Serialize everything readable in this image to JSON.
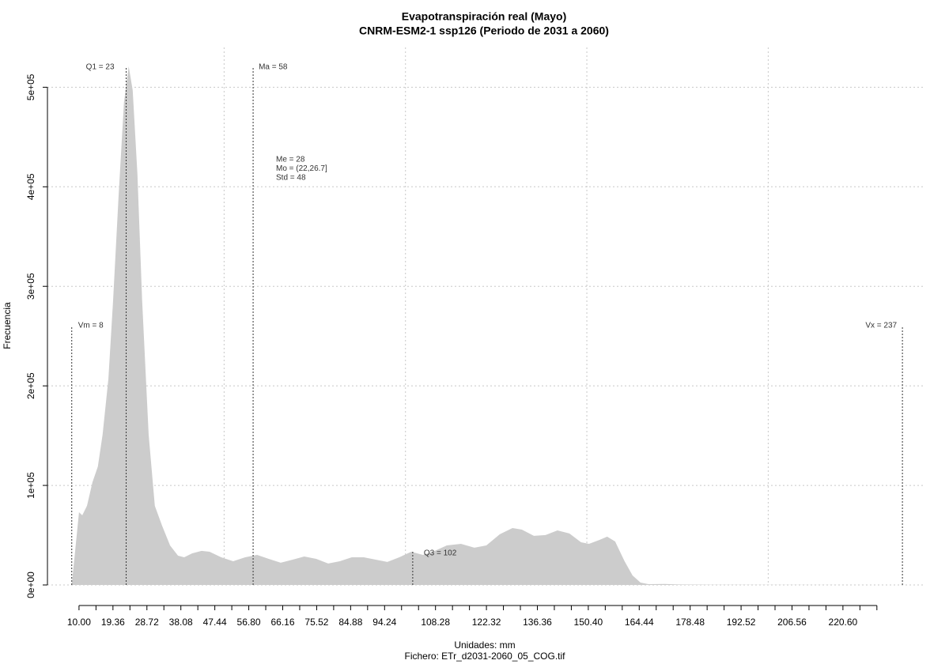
{
  "chart_data": {
    "type": "area",
    "title": "Evapotranspiración real (Mayo)",
    "subtitle": "CNRM-ESM2-1 ssp126 (Periodo de 2031 a 2060)",
    "x_label": "Unidades: mm",
    "caption": "Fichero: ETr_d2031-2060_05_COG.tif",
    "y_label": "Frecuencia",
    "color": "#cccccc",
    "x": [
      8.0,
      10.0,
      10.9,
      12.2,
      13.7,
      15.2,
      16.5,
      18.1,
      19.4,
      20.9,
      22.4,
      23.7,
      24.8,
      26.1,
      27.4,
      29.2,
      30.9,
      32.9,
      35.1,
      37.3,
      39.0,
      41.2,
      43.8,
      46.0,
      49.2,
      52.5,
      55.8,
      59.1,
      62.3,
      65.6,
      68.9,
      72.1,
      75.4,
      78.7,
      81.9,
      85.2,
      88.5,
      91.8,
      95.0,
      98.3,
      101.6,
      104.8,
      108.1,
      111.4,
      115.3,
      119.0,
      122.3,
      126.0,
      129.5,
      132.1,
      135.4,
      138.6,
      141.9,
      145.2,
      148.4,
      150.6,
      153.5,
      155.6,
      157.8,
      160.4,
      162.6,
      164.8,
      167.0,
      171.4,
      175.0,
      184.4,
      206.2,
      234.0
    ],
    "values": [
      0,
      73100,
      70000,
      79500,
      103000,
      119000,
      151000,
      207000,
      286000,
      390000,
      485000,
      521000,
      497000,
      413000,
      286000,
      151000,
      79500,
      59600,
      39700,
      29400,
      27800,
      31800,
      34200,
      33400,
      27800,
      23800,
      27800,
      30200,
      26200,
      22300,
      25400,
      28600,
      26200,
      21500,
      23800,
      27800,
      27800,
      25400,
      23100,
      27800,
      33400,
      30200,
      34200,
      39700,
      41300,
      37400,
      39700,
      50900,
      57200,
      55600,
      49300,
      50100,
      54800,
      51700,
      42900,
      41300,
      45300,
      48500,
      43700,
      23800,
      9500,
      2400,
      800,
      1000,
      500,
      200,
      100,
      0
    ],
    "xlim": [
      1.3,
      243.3
    ],
    "ylim": [
      0,
      540000
    ],
    "xticks": [
      {
        "value": 10,
        "label": "10.00"
      },
      19.36,
      28.72,
      38.08,
      47.44,
      {
        "value": 56.8,
        "label": "56.80"
      },
      66.16,
      75.52,
      84.88,
      94.24,
      108.28,
      122.32,
      136.36,
      {
        "value": 150.4,
        "label": "150.40"
      },
      164.44,
      178.48,
      192.52,
      206.56,
      {
        "value": 220.6,
        "label": "220.60"
      }
    ],
    "xminor_ticks": [
      14.68,
      24.04,
      33.4,
      42.76,
      52.12,
      61.48,
      70.84,
      80.2,
      89.56,
      98.92,
      103.6,
      112.96,
      117.64,
      127,
      131.68,
      141.04,
      145.72,
      155.08,
      159.76,
      169.12,
      173.8,
      183.16,
      187.84,
      197.2,
      201.88,
      211.24,
      215.92,
      225.28,
      229.96
    ],
    "xgrid": [
      50,
      100,
      150,
      200
    ],
    "yticks": [
      {
        "value": 0,
        "label": "0e+00"
      },
      {
        "value": 100000,
        "label": "1e+05"
      },
      {
        "value": 200000,
        "label": "2e+05"
      },
      {
        "value": 300000,
        "label": "3e+05"
      },
      {
        "value": 400000,
        "label": "4e+05"
      },
      {
        "value": 500000,
        "label": "5e+05"
      }
    ],
    "grid": true,
    "markers": [
      {
        "label": "Vm = 8",
        "value": 8
      },
      {
        "label": "Q1 = 23",
        "value": 23
      },
      {
        "label": "Ma = 58",
        "value": 58
      },
      {
        "label": "Q3 = 102",
        "value": 102
      },
      {
        "label": "Vx = 237",
        "value": 237
      }
    ],
    "stats": [
      "Me = 28",
      "Mo = (22,26.7]",
      "Std = 48"
    ]
  }
}
